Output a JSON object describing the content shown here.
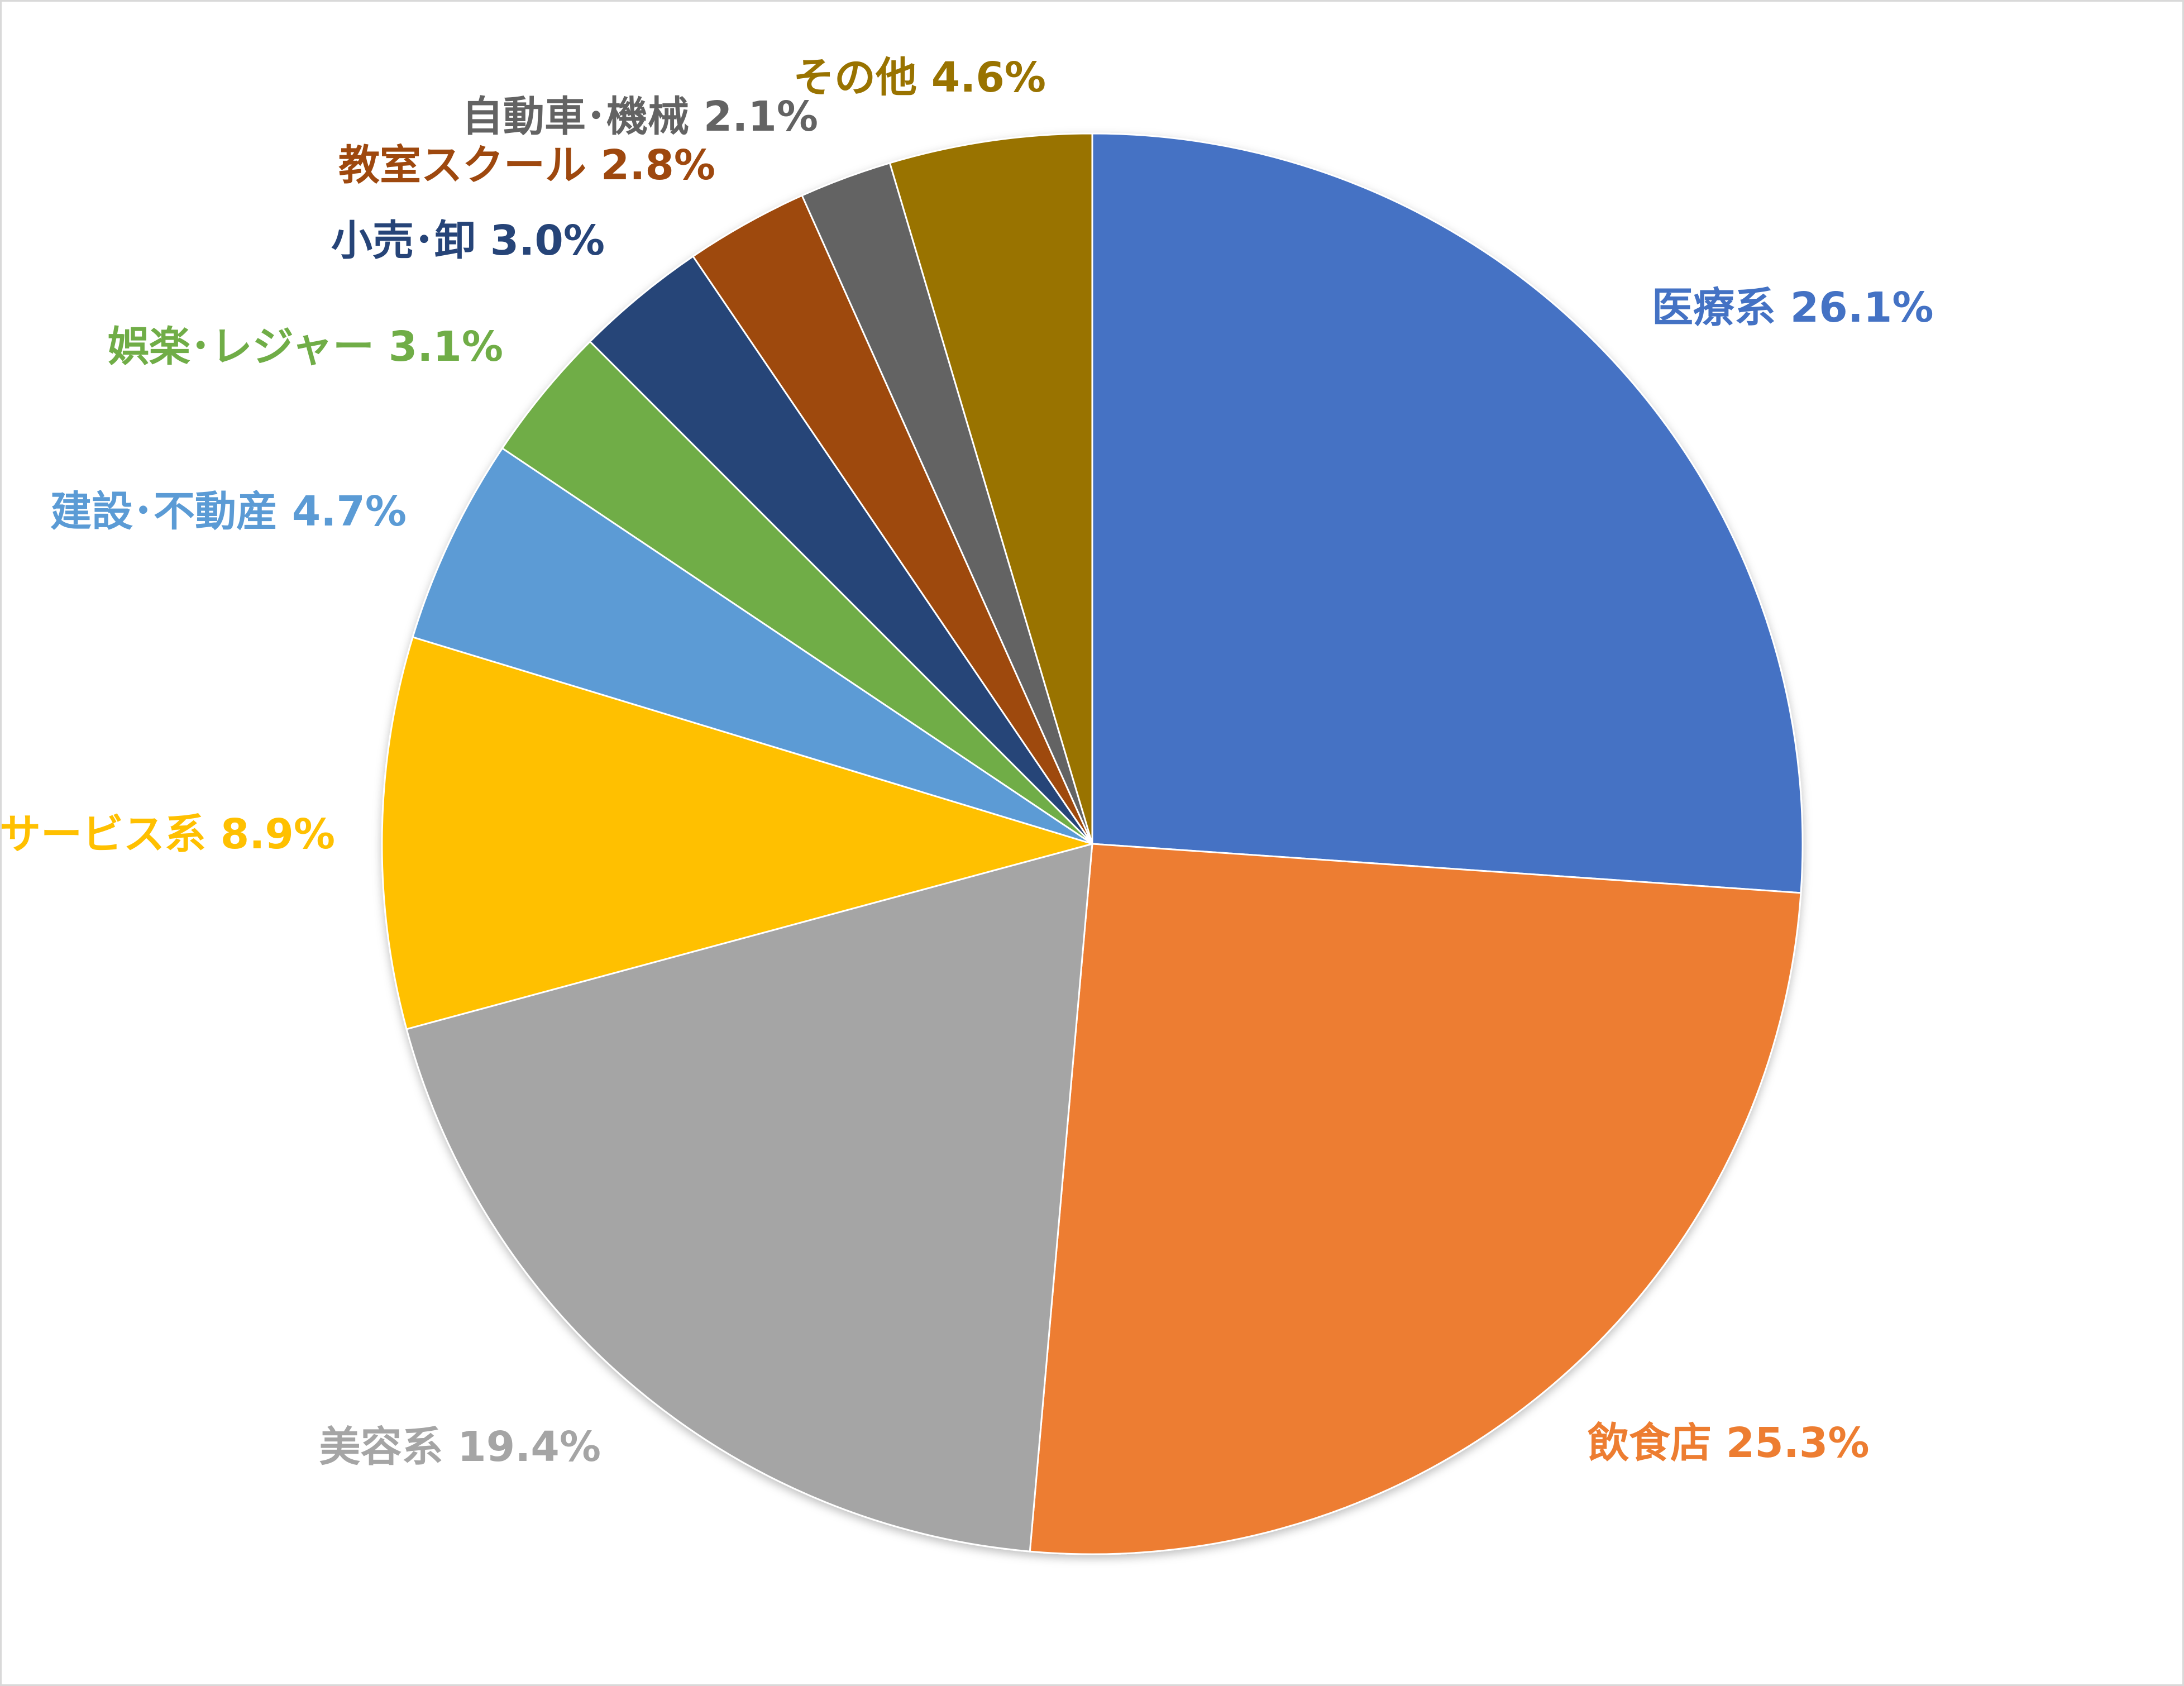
{
  "chart_data": {
    "type": "pie",
    "title": "",
    "start_angle_deg": 0,
    "direction": "clockwise",
    "slices": [
      {
        "label": "医療系",
        "value": 26.1,
        "value_label": "26.1%",
        "color": "#4472C4"
      },
      {
        "label": "飲食店",
        "value": 25.3,
        "value_label": "25.3%",
        "color": "#ED7D31"
      },
      {
        "label": "美容系",
        "value": 19.4,
        "value_label": "19.4%",
        "color": "#A5A5A5"
      },
      {
        "label": "サービス系",
        "value": 8.9,
        "value_label": "8.9%",
        "color": "#FFC000"
      },
      {
        "label": "建設･不動産",
        "value": 4.7,
        "value_label": "4.7%",
        "color": "#5B9BD5"
      },
      {
        "label": "娯楽･レジャー",
        "value": 3.1,
        "value_label": "3.1%",
        "color": "#70AD47"
      },
      {
        "label": "小売･卸",
        "value": 3.0,
        "value_label": "3.0%",
        "color": "#264478"
      },
      {
        "label": "教室スクール",
        "value": 2.8,
        "value_label": "2.8%",
        "color": "#9E480E"
      },
      {
        "label": "自動車･機械",
        "value": 2.1,
        "value_label": "2.1%",
        "color": "#636363"
      },
      {
        "label": "その他",
        "value": 4.6,
        "value_label": "4.6%",
        "color": "#997300"
      }
    ]
  }
}
